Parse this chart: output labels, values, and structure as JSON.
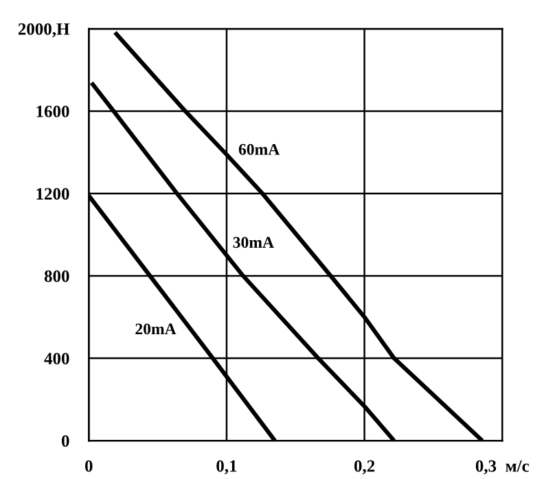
{
  "chart_data": {
    "type": "line",
    "xlim": [
      0,
      0.3
    ],
    "ylim": [
      0,
      2000
    ],
    "xticks": [
      {
        "value": 0,
        "label": "0"
      },
      {
        "value": 0.1,
        "label": "0,1"
      },
      {
        "value": 0.2,
        "label": "0,2"
      },
      {
        "value": 0.3,
        "label": "0,3  м/с"
      }
    ],
    "yticks": [
      0,
      400,
      800,
      1200,
      1600,
      {
        "value": 2000,
        "label": "2000,Н"
      }
    ],
    "grid": true,
    "marker": "none",
    "line_style": "solid",
    "series": [
      {
        "name": "60mA",
        "color": "#000000",
        "x": [
          0.019,
          0.07,
          0.1,
          0.126,
          0.1755,
          0.2,
          0.2215,
          0.2855
        ],
        "values": [
          1982,
          1600,
          1389,
          1200,
          800,
          600,
          400,
          0
        ]
      },
      {
        "name": "30mA",
        "color": "#000000",
        "x": [
          0.002,
          0.018,
          0.064,
          0.112,
          0.1665,
          0.2,
          0.2215
        ],
        "values": [
          1738,
          1600,
          1200,
          800,
          400,
          167,
          0
        ]
      },
      {
        "name": "20mA",
        "color": "#000000",
        "x": [
          0,
          0.09,
          0.135
        ],
        "values": [
          1190,
          400,
          0
        ]
      }
    ]
  }
}
